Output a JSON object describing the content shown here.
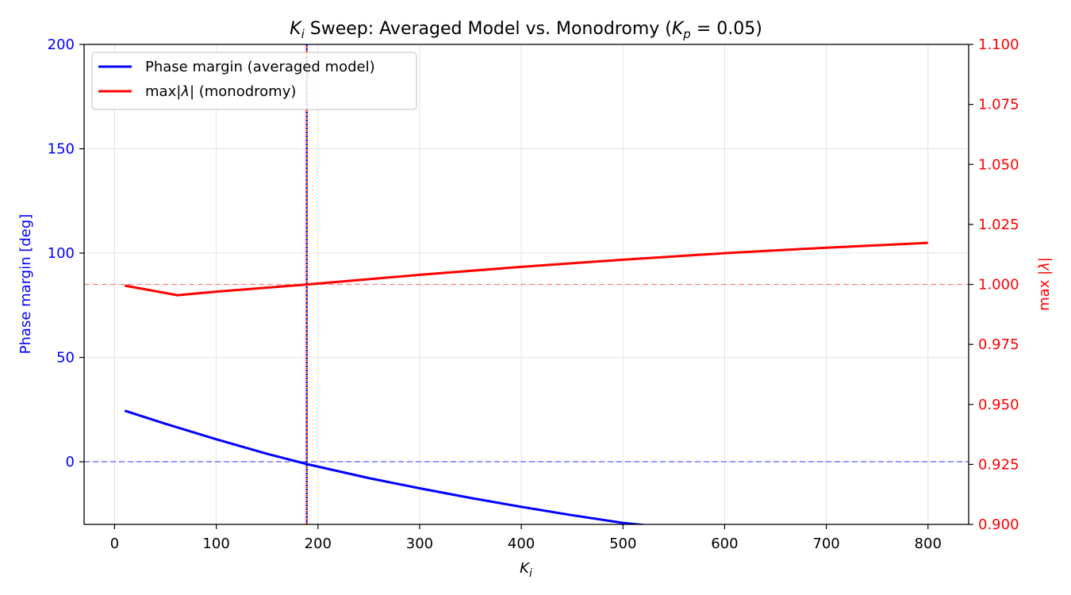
{
  "chart_data": {
    "type": "line",
    "title": {
      "ki": "K",
      "ki_sub": "i",
      "middle": " Sweep: Averaged Model vs. Monodromy  (",
      "kp": "K",
      "kp_sub": "p",
      "end": " = 0.05)"
    },
    "xlabel": {
      "main": "K",
      "sub": "i"
    },
    "ylabel_left": "Phase margin [deg]",
    "ylabel_right": {
      "prefix": "max |",
      "symbol": "λ",
      "suffix": "|"
    },
    "xlim": [
      -30,
      840
    ],
    "ylim_left": [
      -30,
      200
    ],
    "ylim_right": [
      0.9,
      1.1
    ],
    "x_ticks": [
      0,
      100,
      200,
      300,
      400,
      500,
      600,
      700,
      800
    ],
    "y_ticks_left": [
      0,
      50,
      100,
      150,
      200
    ],
    "y_ticks_right": [
      "0.900",
      "0.925",
      "0.950",
      "0.975",
      "1.000",
      "1.025",
      "1.050",
      "1.075",
      "1.100"
    ],
    "grid": true,
    "legend_position": "upper left",
    "colors": {
      "phase": "#0000ff",
      "lambda": "#ff0000",
      "tick_left": "#0000ff",
      "tick_right": "#ff0000"
    },
    "series": [
      {
        "name": "Phase margin (averaged model)",
        "axis": "left",
        "x": [
          10,
          50,
          100,
          150,
          190,
          250,
          300,
          350,
          400,
          450,
          500,
          525
        ],
        "y": [
          24.5,
          18.2,
          10.8,
          3.8,
          -1.2,
          -7.8,
          -12.7,
          -17.3,
          -21.6,
          -25.6,
          -29.3,
          -30.5
        ]
      },
      {
        "name": "max|λ| (monodromy)",
        "name_parts": {
          "prefix": "max|",
          "symbol": "λ",
          "suffix": "| (monodromy)"
        },
        "axis": "right",
        "x": [
          10,
          62,
          100,
          190,
          300,
          400,
          500,
          600,
          700,
          800
        ],
        "y": [
          0.9995,
          0.9955,
          0.997,
          1.0,
          1.004,
          1.0073,
          1.0103,
          1.013,
          1.0153,
          1.0173
        ]
      }
    ],
    "reference_lines": [
      {
        "axis": "left",
        "orientation": "horizontal",
        "value": 0,
        "style": "dashed",
        "color": "#6b6bff"
      },
      {
        "axis": "right",
        "orientation": "horizontal",
        "value": 1.0,
        "style": "dashed",
        "color": "#ff8080"
      },
      {
        "axis": "x",
        "orientation": "vertical",
        "value": 189,
        "style": "dotted",
        "colors": [
          "#0000ff",
          "#ff0000"
        ]
      }
    ]
  }
}
